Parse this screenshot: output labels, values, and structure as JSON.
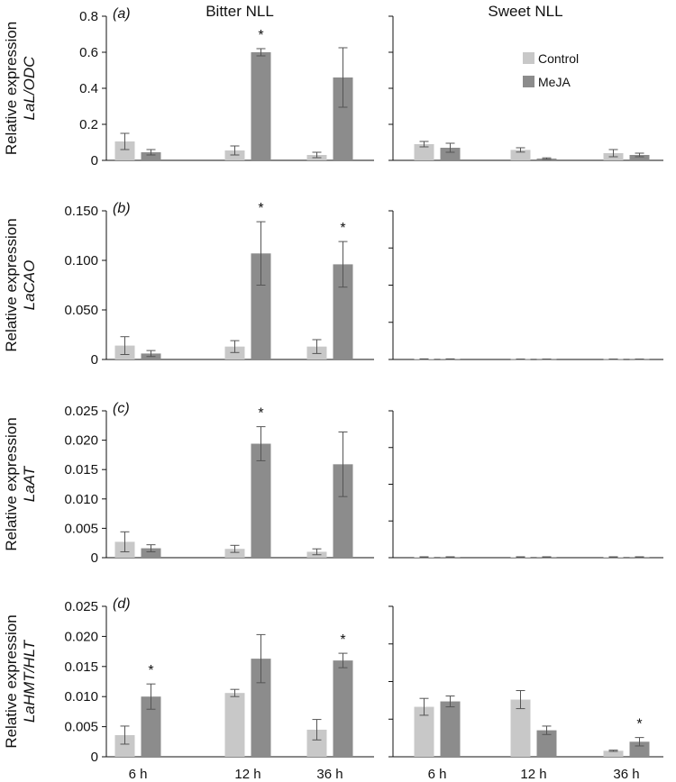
{
  "column_titles": [
    "Bitter NLL",
    "Sweet NLL"
  ],
  "legend": {
    "items": [
      {
        "name": "Control",
        "color": "#c8c8c8"
      },
      {
        "name": "MeJA",
        "color": "#8c8c8c"
      }
    ]
  },
  "colors": {
    "control": "#c8c8c8",
    "meja": "#8c8c8c",
    "error_bar": "#555555",
    "axis": "#111111"
  },
  "chart_data": [
    {
      "type": "bar",
      "panel_label": "(a)",
      "column": "Bitter NLL",
      "ylabel": "Relative expression",
      "ylabel_gene": "LaL/ODC",
      "categories": [
        "6 h",
        "12 h",
        "36 h"
      ],
      "ylim": [
        0,
        0.8
      ],
      "yticks": [
        "0",
        "0.2",
        "0.4",
        "0.6",
        "0.8"
      ],
      "ytick_values": [
        0,
        0.2,
        0.4,
        0.6,
        0.8
      ],
      "series": [
        {
          "name": "Control",
          "values": [
            0.105,
            0.055,
            0.03
          ],
          "errors": [
            0.045,
            0.025,
            0.015
          ]
        },
        {
          "name": "MeJA",
          "values": [
            0.045,
            0.6,
            0.46
          ],
          "errors": [
            0.015,
            0.02,
            0.165
          ]
        }
      ],
      "significance": [
        null,
        "*",
        null
      ]
    },
    {
      "type": "bar",
      "panel_label": "",
      "column": "Sweet NLL",
      "categories": [
        "6 h",
        "12 h",
        "36 h"
      ],
      "ylim": [
        0,
        0.8
      ],
      "series": [
        {
          "name": "Control",
          "values": [
            0.09,
            0.058,
            0.04
          ],
          "errors": [
            0.015,
            0.012,
            0.02
          ]
        },
        {
          "name": "MeJA",
          "values": [
            0.07,
            0.01,
            0.03
          ],
          "errors": [
            0.025,
            0.004,
            0.01
          ]
        }
      ],
      "significance": [
        null,
        null,
        null
      ]
    },
    {
      "type": "bar",
      "panel_label": "(b)",
      "column": "Bitter NLL",
      "ylabel": "Relative expression",
      "ylabel_gene": "LaCAO",
      "categories": [
        "6 h",
        "12 h",
        "36 h"
      ],
      "ylim": [
        0,
        0.15
      ],
      "yticks": [
        "0",
        "0.050",
        "0.100",
        "0.150"
      ],
      "ytick_values": [
        0,
        0.05,
        0.1,
        0.15
      ],
      "series": [
        {
          "name": "Control",
          "values": [
            0.014,
            0.013,
            0.013
          ],
          "errors": [
            0.009,
            0.006,
            0.007
          ]
        },
        {
          "name": "MeJA",
          "values": [
            0.006,
            0.107,
            0.096
          ],
          "errors": [
            0.003,
            0.032,
            0.023
          ]
        }
      ],
      "significance": [
        null,
        "*",
        "*"
      ]
    },
    {
      "type": "bar",
      "panel_label": "",
      "column": "Sweet NLL",
      "categories": [
        "6 h",
        "12 h",
        "36 h"
      ],
      "ylim": [
        0,
        0.15
      ],
      "series": [
        {
          "name": "Control",
          "values": [
            0.0004,
            0.0003,
            0.0003
          ],
          "errors": [
            0.0002,
            0.0001,
            0.0001
          ]
        },
        {
          "name": "MeJA",
          "values": [
            0.0004,
            0.0003,
            0.0003
          ],
          "errors": [
            0.0002,
            0.0001,
            0.0001
          ]
        }
      ],
      "significance": [
        null,
        null,
        null
      ]
    },
    {
      "type": "bar",
      "panel_label": "(c)",
      "column": "Bitter NLL",
      "ylabel": "Relative expression",
      "ylabel_gene": "LaAT",
      "categories": [
        "6 h",
        "12 h",
        "36 h"
      ],
      "ylim": [
        0,
        0.025
      ],
      "yticks": [
        "0",
        "0.005",
        "0.010",
        "0.015",
        "0.020",
        "0.025"
      ],
      "ytick_values": [
        0,
        0.005,
        0.01,
        0.015,
        0.02,
        0.025
      ],
      "series": [
        {
          "name": "Control",
          "values": [
            0.0027,
            0.0015,
            0.001
          ],
          "errors": [
            0.0017,
            0.0006,
            0.0005
          ]
        },
        {
          "name": "MeJA",
          "values": [
            0.0016,
            0.0194,
            0.0159
          ],
          "errors": [
            0.0006,
            0.0029,
            0.0055
          ]
        }
      ],
      "significance": [
        null,
        "*",
        null
      ]
    },
    {
      "type": "bar",
      "panel_label": "",
      "column": "Sweet NLL",
      "categories": [
        "6 h",
        "12 h",
        "36 h"
      ],
      "ylim": [
        0,
        0.025
      ],
      "series": [
        {
          "name": "Control",
          "values": [
            0.0001,
            0.0001,
            0.0001
          ],
          "errors": [
            5e-05,
            5e-05,
            5e-05
          ]
        },
        {
          "name": "MeJA",
          "values": [
            0.0001,
            0.0001,
            0.0001
          ],
          "errors": [
            5e-05,
            5e-05,
            5e-05
          ]
        }
      ],
      "significance": [
        null,
        null,
        null
      ]
    },
    {
      "type": "bar",
      "panel_label": "(d)",
      "column": "Bitter NLL",
      "ylabel": "Relative expression",
      "ylabel_gene": "LaHMT/HLT",
      "categories": [
        "6 h",
        "12 h",
        "36 h"
      ],
      "ylim": [
        0,
        0.025
      ],
      "yticks": [
        "0",
        "0.005",
        "0.010",
        "0.015",
        "0.020",
        "0.025"
      ],
      "ytick_values": [
        0,
        0.005,
        0.01,
        0.015,
        0.02,
        0.025
      ],
      "series": [
        {
          "name": "Control",
          "values": [
            0.0036,
            0.0106,
            0.0045
          ],
          "errors": [
            0.0015,
            0.0006,
            0.0017
          ]
        },
        {
          "name": "MeJA",
          "values": [
            0.01,
            0.0163,
            0.016
          ],
          "errors": [
            0.0021,
            0.004,
            0.0012
          ]
        }
      ],
      "significance": [
        null,
        null,
        null
      ],
      "significance_meja": [
        "*",
        null,
        "*"
      ]
    },
    {
      "type": "bar",
      "panel_label": "",
      "column": "Sweet NLL",
      "categories": [
        "6 h",
        "12 h",
        "36 h"
      ],
      "ylim": [
        0,
        0.025
      ],
      "series": [
        {
          "name": "Control",
          "values": [
            0.0083,
            0.0095,
            0.001
          ],
          "errors": [
            0.0014,
            0.0015,
            0.0001
          ]
        },
        {
          "name": "MeJA",
          "values": [
            0.0092,
            0.0044,
            0.0025
          ],
          "errors": [
            0.0009,
            0.0007,
            0.0007
          ]
        }
      ],
      "significance": [
        null,
        null,
        null
      ],
      "significance_meja": [
        null,
        null,
        "*"
      ]
    }
  ]
}
